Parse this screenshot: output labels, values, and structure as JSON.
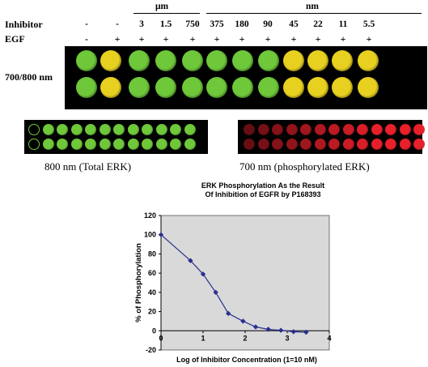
{
  "figure": {
    "unit_um": "μm",
    "unit_nm": "nm",
    "inhibitor_label": "Inhibitor",
    "egf_label": "EGF",
    "plate_label": "700/800 nm",
    "columns": [
      {
        "inhibitor": "-",
        "egf": "-"
      },
      {
        "inhibitor": "-",
        "egf": "+"
      },
      {
        "inhibitor": "3",
        "egf": "+"
      },
      {
        "inhibitor": "1.5",
        "egf": "+"
      },
      {
        "inhibitor": "750",
        "egf": "+"
      },
      {
        "inhibitor": "375",
        "egf": "+"
      },
      {
        "inhibitor": "180",
        "egf": "+"
      },
      {
        "inhibitor": "90",
        "egf": "+"
      },
      {
        "inhibitor": "45",
        "egf": "+"
      },
      {
        "inhibitor": "22",
        "egf": "+"
      },
      {
        "inhibitor": "11",
        "egf": "+"
      },
      {
        "inhibitor": "5.5",
        "egf": "+"
      }
    ],
    "well_colors": {
      "green": "#6ec83a",
      "yellow": "#e8d020",
      "red": "#e8202a",
      "plate": "#000000"
    },
    "caption_800": "800 nm (Total ERK)",
    "caption_700": "700 nm (phosphorylated ERK)"
  },
  "chart_data": {
    "type": "line",
    "title_line1": "ERK Phosphorylation As the Result",
    "title_line2": "Of Inhibition of EGFR by P168393",
    "xlabel": "Log of Inhibitor Concentration (1=10 nM)",
    "ylabel": "% of Phosphorylation",
    "xlim": [
      0,
      4
    ],
    "ylim": [
      -20,
      120
    ],
    "xticks": [
      "0",
      "1",
      "2",
      "3",
      "4"
    ],
    "yticks": [
      "-20",
      "0",
      "20",
      "40",
      "60",
      "80",
      "100",
      "120"
    ],
    "series": [
      {
        "x": [
          0,
          0.7,
          1.0,
          1.3,
          1.6,
          1.95,
          2.25,
          2.55,
          2.85,
          3.15,
          3.45
        ],
        "y": [
          100,
          73,
          59,
          40,
          18,
          10,
          4,
          1.5,
          0.5,
          -1,
          -1.5
        ]
      }
    ],
    "grid": false,
    "plot_bg": "#d9d9d9",
    "line_color": "#2a2f8f"
  }
}
